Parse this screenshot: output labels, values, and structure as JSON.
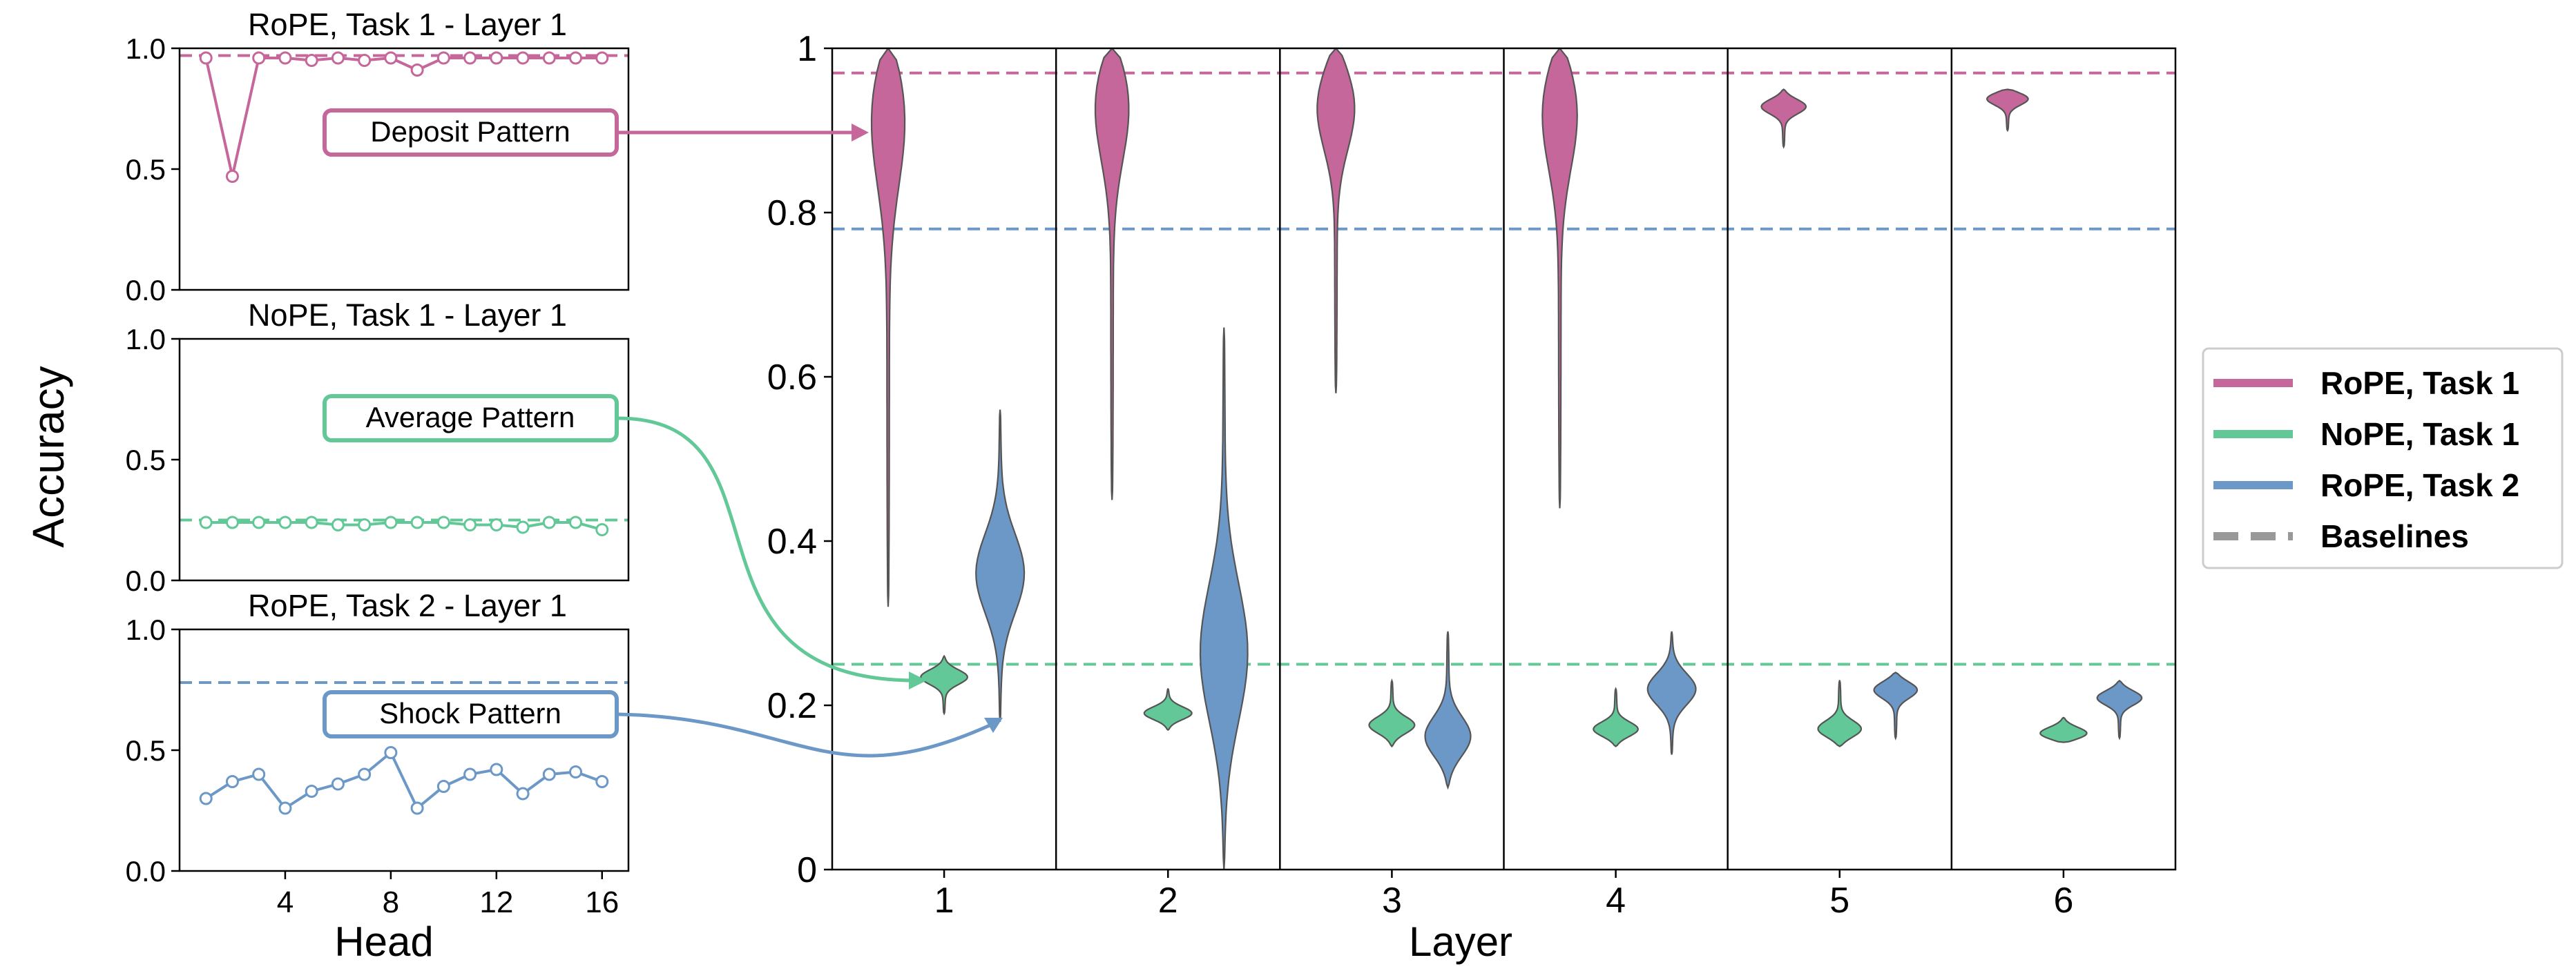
{
  "figure": {
    "ylabel": "Accuracy",
    "small_xlabel": "Head",
    "main_xlabel": "Layer"
  },
  "colors": {
    "rope_task1": "#c5679a",
    "nope_task1": "#63c897",
    "rope_task2": "#6c98c8",
    "baseline_gray": "#999999",
    "axis": "#000000"
  },
  "chart_data": [
    {
      "type": "line",
      "title": "RoPE, Task 1 - Layer 1",
      "xlabel": "",
      "ylabel": "",
      "x": [
        1,
        2,
        3,
        4,
        5,
        6,
        7,
        8,
        9,
        10,
        11,
        12,
        13,
        14,
        15,
        16
      ],
      "y": [
        0.96,
        0.47,
        0.96,
        0.96,
        0.95,
        0.96,
        0.95,
        0.96,
        0.91,
        0.96,
        0.96,
        0.96,
        0.96,
        0.96,
        0.96,
        0.96
      ],
      "baseline": 0.97,
      "ylim": [
        0,
        1.0
      ],
      "xlim": [
        0,
        17
      ],
      "yticks": [
        0.0,
        0.5,
        1.0
      ],
      "ytick_labels": [
        "0.0",
        "0.5",
        "1.0"
      ],
      "xticks": [],
      "xtick_labels": [],
      "color": "#c5679a",
      "annotation": "Deposit Pattern"
    },
    {
      "type": "line",
      "title": "NoPE, Task 1 - Layer 1",
      "xlabel": "",
      "ylabel": "",
      "x": [
        1,
        2,
        3,
        4,
        5,
        6,
        7,
        8,
        9,
        10,
        11,
        12,
        13,
        14,
        15,
        16
      ],
      "y": [
        0.24,
        0.24,
        0.24,
        0.24,
        0.24,
        0.23,
        0.23,
        0.24,
        0.24,
        0.24,
        0.23,
        0.23,
        0.22,
        0.24,
        0.24,
        0.21
      ],
      "baseline": 0.25,
      "ylim": [
        0,
        1.0
      ],
      "xlim": [
        0,
        17
      ],
      "yticks": [
        0.0,
        0.5,
        1.0
      ],
      "ytick_labels": [
        "0.0",
        "0.5",
        "1.0"
      ],
      "xticks": [],
      "xtick_labels": [],
      "color": "#63c897",
      "annotation": "Average Pattern"
    },
    {
      "type": "line",
      "title": "RoPE, Task 2 - Layer 1",
      "xlabel": "Head",
      "ylabel": "",
      "x": [
        1,
        2,
        3,
        4,
        5,
        6,
        7,
        8,
        9,
        10,
        11,
        12,
        13,
        14,
        15,
        16
      ],
      "y": [
        0.3,
        0.37,
        0.4,
        0.26,
        0.33,
        0.36,
        0.4,
        0.49,
        0.26,
        0.35,
        0.4,
        0.42,
        0.32,
        0.4,
        0.41,
        0.37
      ],
      "baseline": 0.78,
      "ylim": [
        0,
        1.0
      ],
      "xlim": [
        0,
        17
      ],
      "yticks": [
        0.0,
        0.5,
        1.0
      ],
      "ytick_labels": [
        "0.0",
        "0.5",
        "1.0"
      ],
      "xticks": [
        4,
        8,
        12,
        16
      ],
      "xtick_labels": [
        "4",
        "8",
        "12",
        "16"
      ],
      "color": "#6c98c8",
      "annotation": "Shock Pattern"
    },
    {
      "type": "violin",
      "title": "",
      "xlabel": "Layer",
      "ylabel": "Accuracy",
      "categories": [
        "1",
        "2",
        "3",
        "4",
        "5",
        "6"
      ],
      "ylim": [
        0,
        1.0
      ],
      "yticks": [
        0,
        0.2,
        0.4,
        0.6,
        0.8,
        1.0
      ],
      "ytick_labels": [
        "0",
        "0.2",
        "0.4",
        "0.6",
        "0.8",
        "1"
      ],
      "baselines": [
        {
          "series": "RoPE, Task 1",
          "value": 0.97
        },
        {
          "series": "NoPE, Task 1",
          "value": 0.25
        },
        {
          "series": "RoPE, Task 2",
          "value": 0.78
        }
      ],
      "series": [
        {
          "name": "RoPE, Task 1",
          "color": "#c5679a",
          "violins": [
            {
              "min": 0.32,
              "max": 1.0,
              "median": 0.94
            },
            {
              "min": 0.45,
              "max": 1.0,
              "median": 0.95
            },
            {
              "min": 0.58,
              "max": 1.0,
              "median": 0.94
            },
            {
              "min": 0.44,
              "max": 1.0,
              "median": 0.94
            },
            {
              "min": 0.88,
              "max": 0.95,
              "median": 0.93
            },
            {
              "min": 0.9,
              "max": 0.95,
              "median": 0.94
            }
          ]
        },
        {
          "name": "NoPE, Task 1",
          "color": "#63c897",
          "violins": [
            {
              "min": 0.19,
              "max": 0.26,
              "median": 0.235
            },
            {
              "min": 0.17,
              "max": 0.22,
              "median": 0.19
            },
            {
              "min": 0.15,
              "max": 0.23,
              "median": 0.175
            },
            {
              "min": 0.15,
              "max": 0.22,
              "median": 0.17
            },
            {
              "min": 0.15,
              "max": 0.23,
              "median": 0.17
            },
            {
              "min": 0.155,
              "max": 0.185,
              "median": 0.165
            }
          ]
        },
        {
          "name": "RoPE, Task 2",
          "color": "#6c98c8",
          "violins": [
            {
              "min": 0.18,
              "max": 0.56,
              "median": 0.36
            },
            {
              "min": 0.0,
              "max": 0.66,
              "median": 0.26
            },
            {
              "min": 0.1,
              "max": 0.29,
              "median": 0.16
            },
            {
              "min": 0.14,
              "max": 0.29,
              "median": 0.22
            },
            {
              "min": 0.16,
              "max": 0.24,
              "median": 0.22
            },
            {
              "min": 0.16,
              "max": 0.23,
              "median": 0.21
            }
          ]
        }
      ],
      "legend": {
        "position": "right",
        "entries": [
          {
            "label": "RoPE, Task 1",
            "color": "#c5679a",
            "style": "solid"
          },
          {
            "label": "NoPE, Task 1",
            "color": "#63c897",
            "style": "solid"
          },
          {
            "label": "RoPE, Task 2",
            "color": "#6c98c8",
            "style": "solid"
          },
          {
            "label": "Baselines",
            "color": "#999999",
            "style": "dashed"
          }
        ]
      }
    }
  ]
}
